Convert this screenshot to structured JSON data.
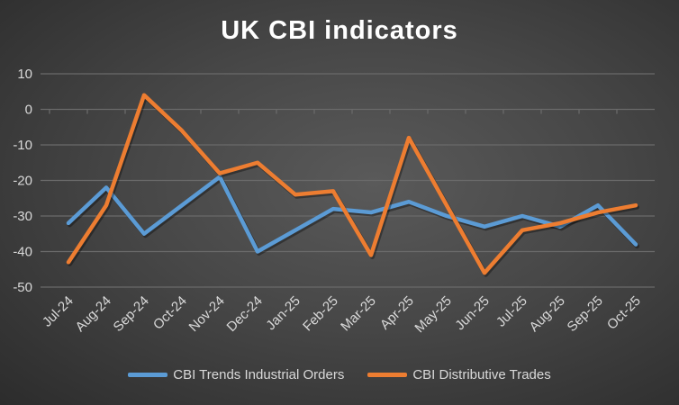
{
  "chart_data": {
    "type": "line",
    "title": "UK CBI indicators",
    "xlabel": "",
    "ylabel": "",
    "ylim": [
      -50,
      10
    ],
    "yticks": [
      10,
      0,
      -10,
      -20,
      -30,
      -40,
      -50
    ],
    "grid": true,
    "legend_position": "bottom",
    "categories": [
      "Jul-24",
      "Aug-24",
      "Sep-24",
      "Oct-24",
      "Nov-24",
      "Dec-24",
      "Jan-25",
      "Feb-25",
      "Mar-25",
      "Apr-25",
      "May-25",
      "Jun-25",
      "Jul-25",
      "Aug-25",
      "Sep-25",
      "Oct-25"
    ],
    "series": [
      {
        "name": "CBI Trends Industrial Orders",
        "color": "#5b9bd5",
        "values": [
          -32,
          -22,
          -35,
          -27,
          -19,
          -40,
          -34,
          -28,
          -29,
          -26,
          -30,
          -33,
          -30,
          -33,
          -27,
          -38
        ]
      },
      {
        "name": "CBI Distributive Trades",
        "color": "#ed7d31",
        "values": [
          -43,
          -27,
          4,
          -6,
          -18,
          -15,
          -24,
          -23,
          -41,
          -8,
          -27,
          -46,
          -34,
          -32,
          -29,
          -27
        ]
      }
    ]
  }
}
